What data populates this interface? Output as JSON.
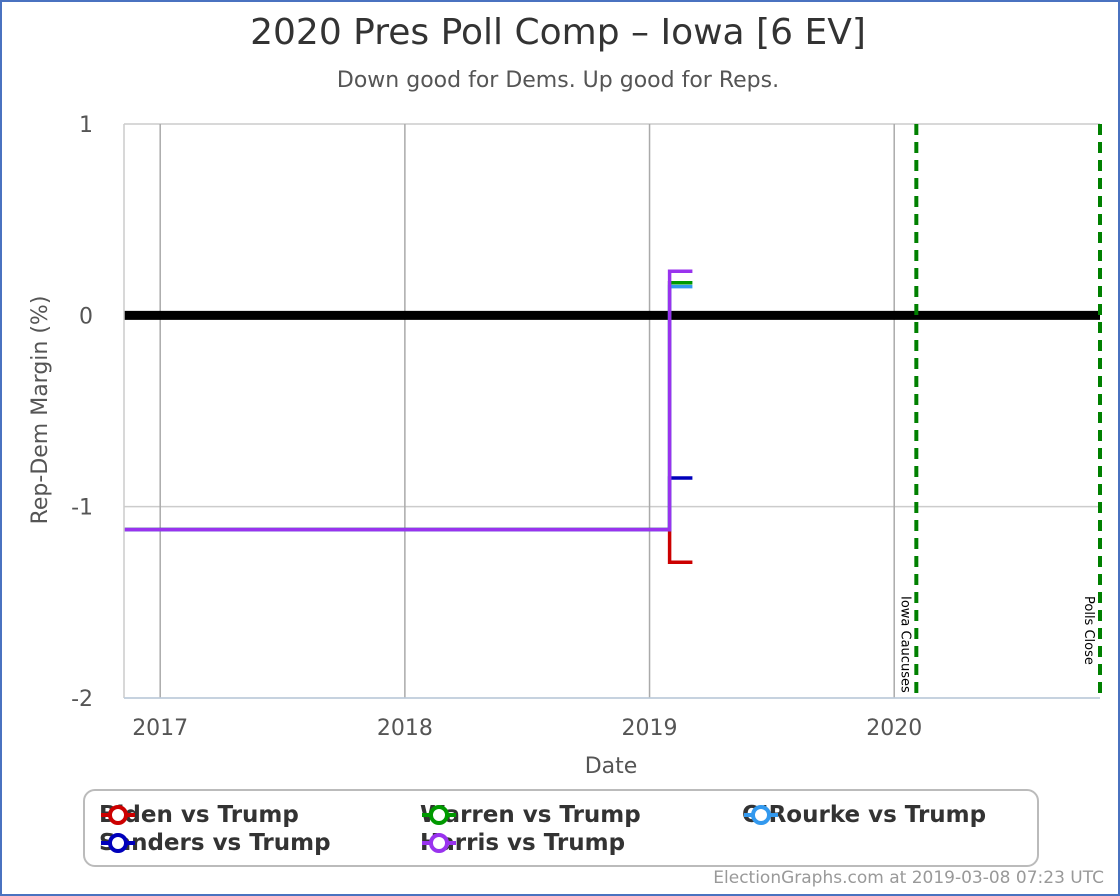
{
  "chart_data": {
    "type": "line",
    "title": "2020 Pres Poll Comp – Iowa [6 EV]",
    "subtitle": "Down good for Dems. Up good for Reps.",
    "xlabel": "Date",
    "ylabel": "Rep-Dem Margin (%)",
    "xlim": [
      "2016-11-08",
      "2020-11-03"
    ],
    "ylim": [
      -2,
      1
    ],
    "x_ticks": [
      {
        "date": "2017-01-01",
        "label": "2017"
      },
      {
        "date": "2018-01-01",
        "label": "2018"
      },
      {
        "date": "2019-01-01",
        "label": "2019"
      },
      {
        "date": "2020-01-01",
        "label": "2020"
      }
    ],
    "y_ticks": [
      {
        "value": 1,
        "label": "1"
      },
      {
        "value": 0,
        "label": "0"
      },
      {
        "value": -1,
        "label": "-1"
      },
      {
        "value": -2,
        "label": "-2"
      }
    ],
    "grid": true,
    "zero_line": true,
    "event_lines": [
      {
        "date": "2020-02-03",
        "label": "Iowa Caucuses",
        "color": "#008000"
      },
      {
        "date": "2020-11-03",
        "label": "Polls Close",
        "color": "#008000"
      }
    ],
    "legend_position": "bottom",
    "series": [
      {
        "name": "Biden vs Trump",
        "color": "#cc0000",
        "points": [
          {
            "x": "2016-11-08",
            "y": -1.12
          },
          {
            "x": "2019-01-31",
            "y": -1.12
          },
          {
            "x": "2019-01-31",
            "y": -1.29
          },
          {
            "x": "2019-03-06",
            "y": -1.29
          }
        ]
      },
      {
        "name": "Sanders vs Trump",
        "color": "#0000bb",
        "points": [
          {
            "x": "2016-11-08",
            "y": -1.12
          },
          {
            "x": "2019-01-31",
            "y": -1.12
          },
          {
            "x": "2019-01-31",
            "y": -0.85
          },
          {
            "x": "2019-03-06",
            "y": -0.85
          }
        ]
      },
      {
        "name": "Warren vs Trump",
        "color": "#009900",
        "points": [
          {
            "x": "2016-11-08",
            "y": -1.12
          },
          {
            "x": "2019-01-31",
            "y": -1.12
          },
          {
            "x": "2019-01-31",
            "y": 0.17
          },
          {
            "x": "2019-03-06",
            "y": 0.17
          }
        ]
      },
      {
        "name": "O'Rourke vs Trump",
        "color": "#3399ee",
        "points": [
          {
            "x": "2016-11-08",
            "y": -1.12
          },
          {
            "x": "2019-01-31",
            "y": -1.12
          },
          {
            "x": "2019-01-31",
            "y": 0.15
          },
          {
            "x": "2019-03-06",
            "y": 0.15
          }
        ]
      },
      {
        "name": "Harris vs Trump",
        "color": "#9933ee",
        "points": [
          {
            "x": "2016-11-08",
            "y": -1.12
          },
          {
            "x": "2019-01-31",
            "y": -1.12
          },
          {
            "x": "2019-01-31",
            "y": 0.23
          },
          {
            "x": "2019-03-06",
            "y": 0.23
          }
        ]
      }
    ]
  },
  "legend_items": [
    {
      "name": "Biden vs Trump",
      "color": "#cc0000"
    },
    {
      "name": "Warren vs Trump",
      "color": "#009900"
    },
    {
      "name": "O'Rourke vs Trump",
      "color": "#3399ee"
    },
    {
      "name": "Sanders vs Trump",
      "color": "#0000bb"
    },
    {
      "name": "Harris vs Trump",
      "color": "#9933ee"
    }
  ],
  "footer": "ElectionGraphs.com at 2019-03-08 07:23 UTC"
}
